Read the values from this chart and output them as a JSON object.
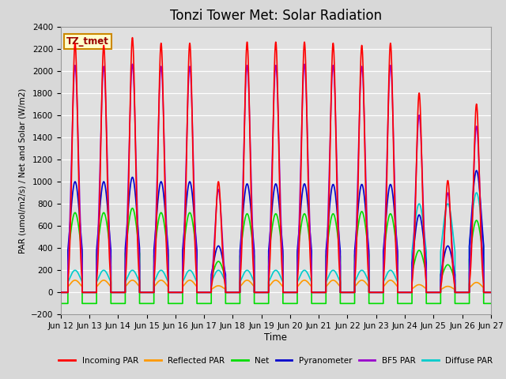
{
  "title": "Tonzi Tower Met: Solar Radiation",
  "ylabel": "PAR (umol/m2/s) / Net and Solar (W/m2)",
  "xlabel": "Time",
  "ylim": [
    -200,
    2400
  ],
  "xlim": [
    0,
    15
  ],
  "fig_bg_color": "#d8d8d8",
  "plot_bg_color": "#e0e0e0",
  "tag_text": "TZ_tmet",
  "tag_facecolor": "#ffffcc",
  "tag_edgecolor": "#cc8800",
  "tag_textcolor": "#990000",
  "xtick_labels": [
    "Jun 12",
    "Jun 13",
    "Jun 14",
    "Jun 15",
    "Jun 16",
    "Jun 17",
    "Jun 18",
    "Jun 19",
    "Jun 20",
    "Jun 21",
    "Jun 22",
    "Jun 23",
    "Jun 24",
    "Jun 25",
    "Jun 26",
    "Jun 27"
  ],
  "series": {
    "incoming_par": {
      "color": "#ff0000",
      "label": "Incoming PAR",
      "lw": 1.2
    },
    "reflected_par": {
      "color": "#ff9900",
      "label": "Reflected PAR",
      "lw": 1.2
    },
    "net": {
      "color": "#00dd00",
      "label": "Net",
      "lw": 1.2
    },
    "pyranometer": {
      "color": "#0000cc",
      "label": "Pyranometer",
      "lw": 1.2
    },
    "bf5_par": {
      "color": "#9900cc",
      "label": "BF5 PAR",
      "lw": 1.2
    },
    "diffuse_par": {
      "color": "#00cccc",
      "label": "Diffuse PAR",
      "lw": 1.2
    }
  },
  "num_days": 15,
  "day_peaks": [
    2250,
    2230,
    2300,
    2250,
    2250,
    1000,
    2260,
    2260,
    2260,
    2250,
    2230,
    2250,
    1800,
    1010,
    1700
  ],
  "pyranometer_peaks": [
    1000,
    1000,
    1040,
    1000,
    1000,
    420,
    980,
    980,
    980,
    975,
    975,
    975,
    700,
    420,
    1100
  ],
  "net_peaks": [
    720,
    720,
    760,
    720,
    720,
    280,
    710,
    710,
    710,
    710,
    730,
    710,
    380,
    250,
    650
  ],
  "reflected_peaks": [
    110,
    110,
    110,
    110,
    110,
    60,
    110,
    110,
    110,
    110,
    110,
    110,
    70,
    55,
    90
  ],
  "bf5_peaks": [
    2050,
    2040,
    2060,
    2040,
    2040,
    930,
    2050,
    2050,
    2060,
    2050,
    2040,
    2050,
    1600,
    900,
    1500
  ],
  "diffuse_peaks": [
    200,
    200,
    200,
    200,
    200,
    200,
    200,
    200,
    200,
    200,
    200,
    200,
    800,
    800,
    900
  ]
}
